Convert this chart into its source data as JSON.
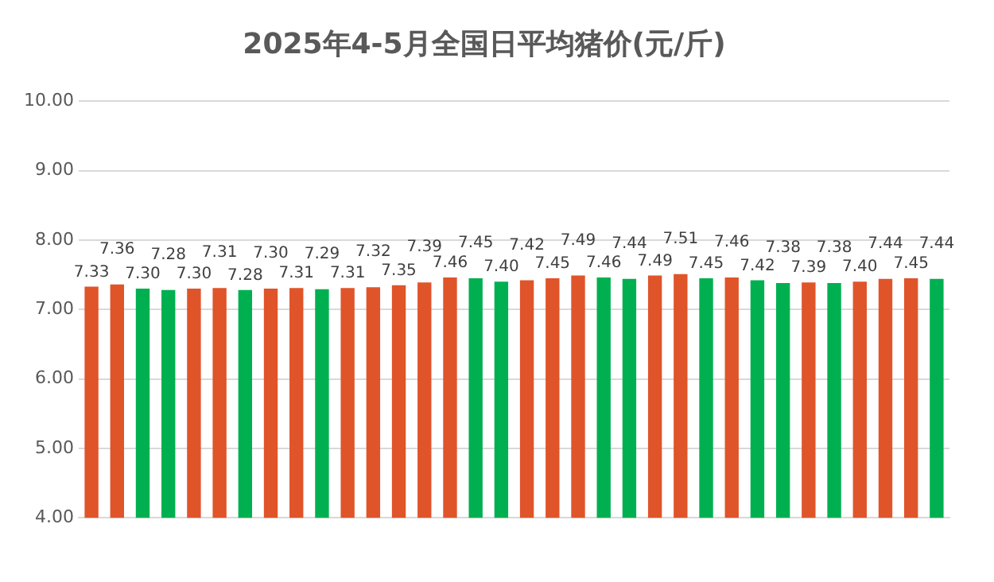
{
  "chart_data": {
    "type": "bar",
    "title": "2025年4-5月全国日平均猪价(元/斤)",
    "categories": [
      null,
      null,
      null,
      null,
      null,
      null,
      null,
      null,
      null,
      null,
      null,
      null,
      null,
      null,
      null,
      null,
      null,
      null,
      null,
      null,
      null,
      null,
      null,
      null,
      null,
      null,
      null,
      null,
      null,
      null,
      null,
      null,
      null,
      null
    ],
    "values": [
      7.33,
      7.36,
      7.3,
      7.28,
      7.3,
      7.31,
      7.28,
      7.3,
      7.31,
      7.29,
      7.31,
      7.32,
      7.35,
      7.39,
      7.46,
      7.45,
      7.4,
      7.42,
      7.45,
      7.49,
      7.46,
      7.44,
      7.49,
      7.51,
      7.45,
      7.46,
      7.42,
      7.38,
      7.39,
      7.38,
      7.4,
      7.44,
      7.45,
      7.44
    ],
    "value_labels": [
      "7.33",
      "7.36",
      "7.30",
      "7.28",
      "7.30",
      "7.31",
      "7.28",
      "7.30",
      "7.31",
      "7.29",
      "7.31",
      "7.32",
      "7.35",
      "7.39",
      "7.46",
      "7.45",
      "7.40",
      "7.42",
      "7.45",
      "7.49",
      "7.46",
      "7.44",
      "7.49",
      "7.51",
      "7.45",
      "7.46",
      "7.42",
      "7.38",
      "7.39",
      "7.38",
      "7.40",
      "7.44",
      "7.45",
      "7.44"
    ],
    "colors": [
      "#e0542a",
      "#e0542a",
      "#00b050",
      "#00b050",
      "#e0542a",
      "#e0542a",
      "#00b050",
      "#e0542a",
      "#e0542a",
      "#00b050",
      "#e0542a",
      "#e0542a",
      "#e0542a",
      "#e0542a",
      "#e0542a",
      "#00b050",
      "#00b050",
      "#e0542a",
      "#e0542a",
      "#e0542a",
      "#00b050",
      "#00b050",
      "#e0542a",
      "#e0542a",
      "#00b050",
      "#e0542a",
      "#00b050",
      "#00b050",
      "#e0542a",
      "#00b050",
      "#e0542a",
      "#e0542a",
      "#e0542a",
      "#00b050"
    ],
    "ylim": [
      4,
      10
    ],
    "yticks": [
      {
        "value": 4,
        "label": "4.00"
      },
      {
        "value": 5,
        "label": "5.00"
      },
      {
        "value": 6,
        "label": "6.00"
      },
      {
        "value": 7,
        "label": "7.00"
      },
      {
        "value": 8,
        "label": "8.00"
      },
      {
        "value": 9,
        "label": "9.00"
      },
      {
        "value": 10,
        "label": "10.00"
      }
    ],
    "grid": "y",
    "legend": false
  }
}
